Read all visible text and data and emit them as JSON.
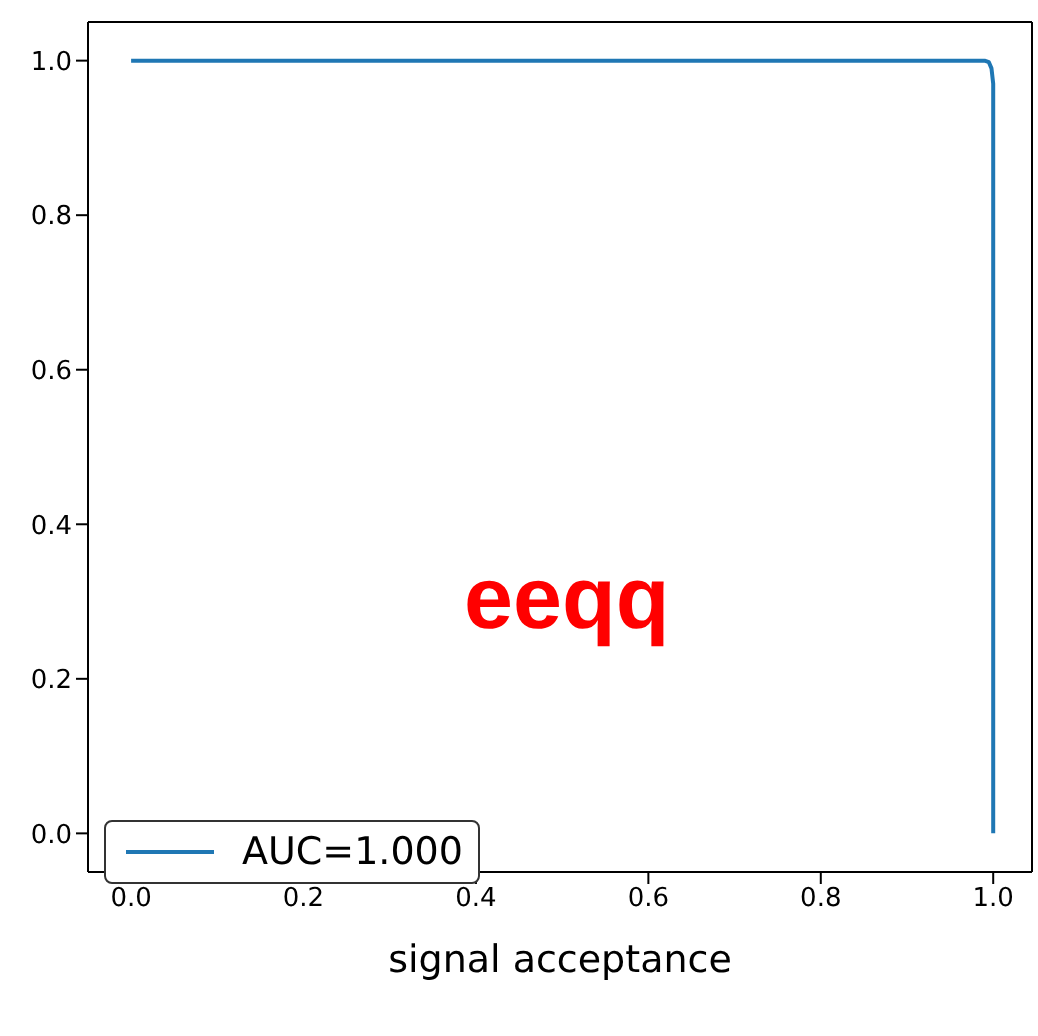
{
  "chart_data": {
    "type": "line",
    "xlabel": "signal acceptance",
    "x": [
      0,
      0.5,
      0.99,
      0.995,
      0.998,
      1,
      1
    ],
    "series": [
      {
        "name": "AUC=1.000",
        "color": "#1f77b4",
        "values": [
          1,
          1,
          1,
          0.998,
          0.99,
          0.97,
          0
        ]
      }
    ],
    "xlim": [
      -0.05,
      1.045
    ],
    "ylim": [
      -0.05,
      1.05
    ],
    "xticks": [
      {
        "value": 0,
        "label": "0.0"
      },
      {
        "value": 0.2,
        "label": "0.2"
      },
      {
        "value": 0.4,
        "label": "0.4"
      },
      {
        "value": 0.6,
        "label": "0.6"
      },
      {
        "value": 0.8,
        "label": "0.8"
      },
      {
        "value": 1,
        "label": "1.0"
      }
    ],
    "yticks": [
      {
        "value": 0,
        "label": "0.0"
      },
      {
        "value": 0.2,
        "label": "0.2"
      },
      {
        "value": 0.4,
        "label": "0.4"
      },
      {
        "value": 0.6,
        "label": "0.6"
      },
      {
        "value": 0.8,
        "label": "0.8"
      },
      {
        "value": 1,
        "label": "1.0"
      }
    ],
    "annotations": [
      "eeqq"
    ],
    "legend": "bottom left",
    "grid": false,
    "marker": "none",
    "line_style": "solid"
  }
}
